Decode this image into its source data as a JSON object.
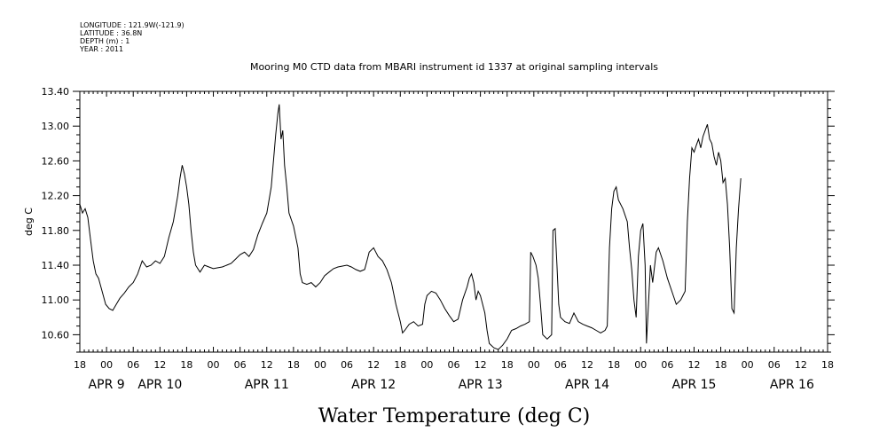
{
  "header": {
    "longitude": "LONGITUDE : 121.9W(-121.9)",
    "latitude": "LATITUDE : 36.8N",
    "depth": "DEPTH (m) : 1",
    "year": "YEAR : 2011",
    "title": "Mooring M0 CTD data from MBARI instrument id 1337 at original sampling intervals"
  },
  "chart_data": {
    "type": "line",
    "title": "Mooring M0 CTD data from MBARI instrument id 1337 at original sampling intervals",
    "xlabel": "Water Temperature (deg C)",
    "ylabel": "deg C",
    "ylim": [
      10.4,
      13.4
    ],
    "y_ticks": [
      "10.60",
      "11.00",
      "11.40",
      "11.80",
      "12.20",
      "12.60",
      "13.00",
      "13.40"
    ],
    "x_unit": "hours since APR 8 18:00",
    "xlim": [
      0,
      168
    ],
    "x_hour_labels": [
      "18",
      "00",
      "06",
      "12",
      "18",
      "00",
      "06",
      "12",
      "18",
      "00",
      "06",
      "12",
      "18",
      "00",
      "06",
      "12",
      "18",
      "00",
      "06",
      "12",
      "18",
      "00",
      "06",
      "12",
      "18",
      "00",
      "06",
      "12",
      "18"
    ],
    "x_day_labels": [
      {
        "label": "APR  9",
        "x": 6
      },
      {
        "label": "APR 10",
        "x": 18
      },
      {
        "label": "APR 11",
        "x": 42
      },
      {
        "label": "APR 12",
        "x": 66
      },
      {
        "label": "APR 13",
        "x": 90
      },
      {
        "label": "APR 14",
        "x": 114
      },
      {
        "label": "APR 15",
        "x": 138
      },
      {
        "label": "APR 16",
        "x": 160
      }
    ],
    "series": [
      {
        "values": [
          [
            0,
            12.1
          ],
          [
            0.6,
            12.0
          ],
          [
            1.2,
            12.05
          ],
          [
            1.8,
            11.95
          ],
          [
            2.4,
            11.7
          ],
          [
            3,
            11.45
          ],
          [
            3.6,
            11.3
          ],
          [
            4.2,
            11.25
          ],
          [
            5,
            11.1
          ],
          [
            5.8,
            10.95
          ],
          [
            6.6,
            10.9
          ],
          [
            7.4,
            10.88
          ],
          [
            8.2,
            10.95
          ],
          [
            9,
            11.02
          ],
          [
            10,
            11.08
          ],
          [
            11,
            11.15
          ],
          [
            12,
            11.2
          ],
          [
            13,
            11.3
          ],
          [
            14,
            11.45
          ],
          [
            15,
            11.38
          ],
          [
            16,
            11.4
          ],
          [
            17,
            11.45
          ],
          [
            18,
            11.42
          ],
          [
            19,
            11.5
          ],
          [
            20,
            11.72
          ],
          [
            21,
            11.9
          ],
          [
            22,
            12.2
          ],
          [
            22.5,
            12.4
          ],
          [
            23,
            12.55
          ],
          [
            23.5,
            12.45
          ],
          [
            24,
            12.3
          ],
          [
            24.5,
            12.1
          ],
          [
            25,
            11.8
          ],
          [
            25.5,
            11.55
          ],
          [
            26,
            11.4
          ],
          [
            27,
            11.32
          ],
          [
            28,
            11.4
          ],
          [
            29,
            11.38
          ],
          [
            30,
            11.36
          ],
          [
            31,
            11.37
          ],
          [
            32,
            11.38
          ],
          [
            33,
            11.4
          ],
          [
            34,
            11.42
          ],
          [
            35,
            11.47
          ],
          [
            36,
            11.52
          ],
          [
            37,
            11.55
          ],
          [
            38,
            11.5
          ],
          [
            39,
            11.58
          ],
          [
            40,
            11.75
          ],
          [
            41,
            11.88
          ],
          [
            42,
            12.0
          ],
          [
            43,
            12.3
          ],
          [
            43.5,
            12.6
          ],
          [
            44,
            12.9
          ],
          [
            44.5,
            13.15
          ],
          [
            44.8,
            13.25
          ],
          [
            45.2,
            12.85
          ],
          [
            45.6,
            12.95
          ],
          [
            46,
            12.55
          ],
          [
            46.5,
            12.3
          ],
          [
            47,
            12.0
          ],
          [
            48,
            11.85
          ],
          [
            49,
            11.6
          ],
          [
            49.5,
            11.3
          ],
          [
            50,
            11.2
          ],
          [
            51,
            11.18
          ],
          [
            52,
            11.2
          ],
          [
            53,
            11.15
          ],
          [
            54,
            11.2
          ],
          [
            55,
            11.28
          ],
          [
            56,
            11.32
          ],
          [
            57,
            11.36
          ],
          [
            58,
            11.38
          ],
          [
            59,
            11.39
          ],
          [
            60,
            11.4
          ],
          [
            61,
            11.38
          ],
          [
            62,
            11.35
          ],
          [
            63,
            11.33
          ],
          [
            64,
            11.35
          ],
          [
            64.5,
            11.45
          ],
          [
            65,
            11.55
          ],
          [
            66,
            11.6
          ],
          [
            66.5,
            11.55
          ],
          [
            67,
            11.5
          ],
          [
            68,
            11.45
          ],
          [
            69,
            11.35
          ],
          [
            70,
            11.2
          ],
          [
            71,
            10.95
          ],
          [
            72,
            10.75
          ],
          [
            72.5,
            10.62
          ],
          [
            73,
            10.65
          ],
          [
            74,
            10.72
          ],
          [
            75,
            10.75
          ],
          [
            76,
            10.7
          ],
          [
            77,
            10.72
          ],
          [
            77.5,
            10.95
          ],
          [
            78,
            11.05
          ],
          [
            79,
            11.1
          ],
          [
            80,
            11.08
          ],
          [
            81,
            11.0
          ],
          [
            82,
            10.9
          ],
          [
            83,
            10.82
          ],
          [
            84,
            10.75
          ],
          [
            85,
            10.78
          ],
          [
            86,
            11.0
          ],
          [
            87,
            11.15
          ],
          [
            87.5,
            11.25
          ],
          [
            88,
            11.3
          ],
          [
            88.5,
            11.2
          ],
          [
            89,
            11.0
          ],
          [
            89.5,
            11.1
          ],
          [
            90,
            11.05
          ],
          [
            91,
            10.85
          ],
          [
            91.5,
            10.65
          ],
          [
            92,
            10.5
          ],
          [
            93,
            10.45
          ],
          [
            94,
            10.43
          ],
          [
            95,
            10.48
          ],
          [
            96,
            10.55
          ],
          [
            97,
            10.65
          ],
          [
            98,
            10.67
          ],
          [
            99,
            10.7
          ],
          [
            100,
            10.72
          ],
          [
            101,
            10.75
          ],
          [
            101.3,
            11.55
          ],
          [
            101.8,
            11.5
          ],
          [
            102.5,
            11.4
          ],
          [
            103,
            11.25
          ],
          [
            103.5,
            10.95
          ],
          [
            104,
            10.6
          ],
          [
            105,
            10.55
          ],
          [
            106,
            10.6
          ],
          [
            106.3,
            11.8
          ],
          [
            106.8,
            11.82
          ],
          [
            107.2,
            11.4
          ],
          [
            107.6,
            10.95
          ],
          [
            108,
            10.8
          ],
          [
            109,
            10.75
          ],
          [
            110,
            10.73
          ],
          [
            111,
            10.85
          ],
          [
            112,
            10.75
          ],
          [
            113,
            10.72
          ],
          [
            114,
            10.7
          ],
          [
            115,
            10.68
          ],
          [
            116,
            10.65
          ],
          [
            117,
            10.62
          ],
          [
            118,
            10.65
          ],
          [
            118.5,
            10.7
          ],
          [
            119,
            11.6
          ],
          [
            119.5,
            12.05
          ],
          [
            120,
            12.25
          ],
          [
            120.5,
            12.3
          ],
          [
            121,
            12.15
          ],
          [
            122,
            12.05
          ],
          [
            123,
            11.9
          ],
          [
            123.5,
            11.6
          ],
          [
            124,
            11.35
          ],
          [
            124.5,
            11.0
          ],
          [
            125,
            10.8
          ],
          [
            125.5,
            11.5
          ],
          [
            126,
            11.8
          ],
          [
            126.5,
            11.88
          ],
          [
            127,
            11.4
          ],
          [
            127.3,
            10.5
          ],
          [
            127.8,
            11.0
          ],
          [
            128.2,
            11.4
          ],
          [
            128.7,
            11.2
          ],
          [
            129.5,
            11.55
          ],
          [
            130,
            11.6
          ],
          [
            131,
            11.45
          ],
          [
            132,
            11.25
          ],
          [
            133,
            11.1
          ],
          [
            134,
            10.95
          ],
          [
            135,
            11.0
          ],
          [
            136,
            11.1
          ],
          [
            136.5,
            11.9
          ],
          [
            137,
            12.4
          ],
          [
            137.5,
            12.75
          ],
          [
            138,
            12.7
          ],
          [
            138.5,
            12.78
          ],
          [
            139,
            12.85
          ],
          [
            139.5,
            12.75
          ],
          [
            140,
            12.88
          ],
          [
            140.5,
            12.95
          ],
          [
            141,
            13.02
          ],
          [
            141.5,
            12.85
          ],
          [
            142,
            12.8
          ],
          [
            142.5,
            12.65
          ],
          [
            143,
            12.55
          ],
          [
            143.5,
            12.7
          ],
          [
            144,
            12.6
          ],
          [
            144.5,
            12.35
          ],
          [
            145,
            12.4
          ],
          [
            145.5,
            12.1
          ],
          [
            146,
            11.6
          ],
          [
            146.5,
            10.9
          ],
          [
            147,
            10.85
          ],
          [
            147.5,
            11.6
          ],
          [
            148,
            12.05
          ],
          [
            148.5,
            12.4
          ]
        ]
      }
    ]
  }
}
